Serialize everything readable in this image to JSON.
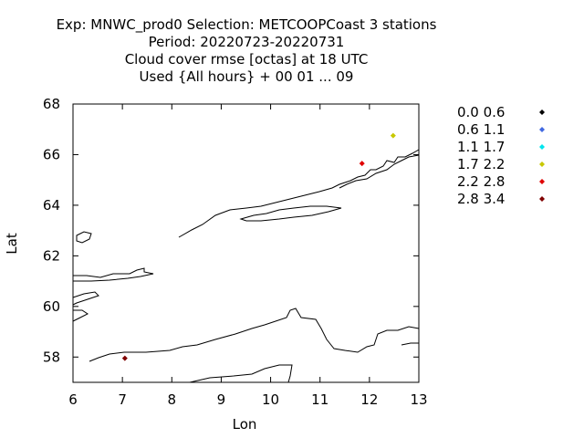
{
  "chart_data": {
    "type": "scatter",
    "title_lines": [
      "Exp: MNWC_prod0   Selection: METCOOPCoast       3 stations",
      "Period: 20220723-20220731",
      "Cloud cover rmse [octas] at  18 UTC",
      "Used {All hours} + 00 01 ... 09"
    ],
    "xlabel": "Lon",
    "ylabel": "Lat",
    "xlim": [
      6,
      13
    ],
    "ylim": [
      57,
      68
    ],
    "xticks": [
      6,
      7,
      8,
      9,
      10,
      11,
      12,
      13
    ],
    "yticks": [
      58,
      60,
      62,
      64,
      66,
      68
    ],
    "grid": false,
    "legend_position": "right",
    "legend": [
      {
        "label": "0.0 0.6",
        "color": "#000000"
      },
      {
        "label": "0.6 1.1",
        "color": "#4169e1"
      },
      {
        "label": "1.1 1.7",
        "color": "#00e5ee"
      },
      {
        "label": "1.7 2.2",
        "color": "#c8c800"
      },
      {
        "label": "2.2 2.8",
        "color": "#e00000"
      },
      {
        "label": "2.8 3.4",
        "color": "#800000"
      }
    ],
    "points": [
      {
        "lon": 12.48,
        "lat": 66.75,
        "class": 3
      },
      {
        "lon": 11.85,
        "lat": 65.65,
        "class": 4
      },
      {
        "lon": 7.05,
        "lat": 57.95,
        "class": 5
      }
    ]
  }
}
